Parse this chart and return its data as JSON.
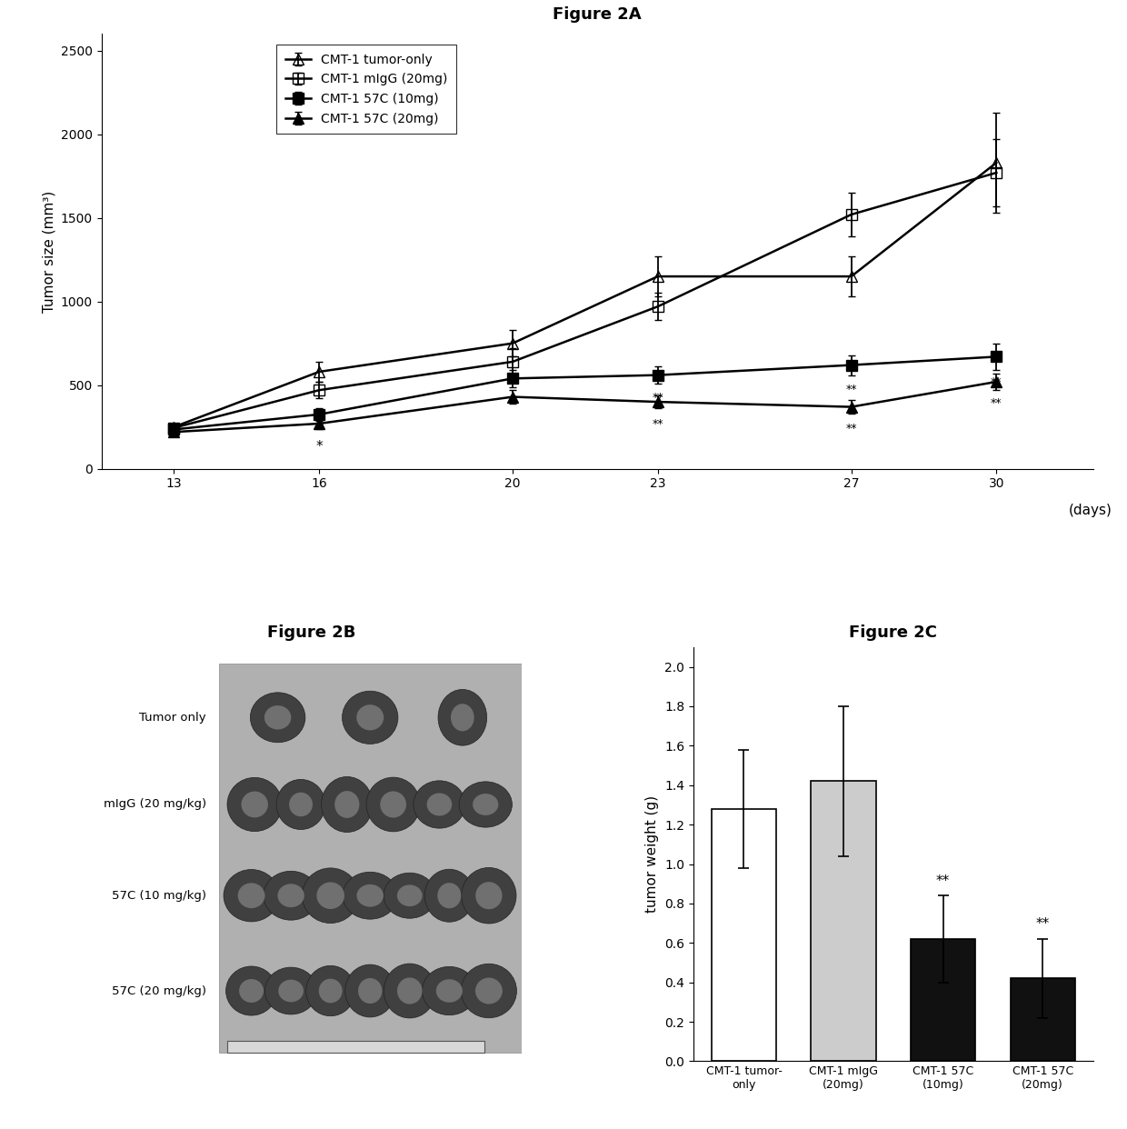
{
  "fig2a_title": "Figure 2A",
  "fig2b_title": "Figure 2B",
  "fig2c_title": "Figure 2C",
  "lineplot": {
    "x": [
      13,
      16,
      20,
      23,
      27,
      30
    ],
    "series": {
      "tumor_only": {
        "y": [
          250,
          580,
          750,
          1150,
          1150,
          1830
        ],
        "yerr": [
          20,
          60,
          80,
          120,
          120,
          300
        ],
        "label": "CMT-1 tumor-only",
        "marker": "^",
        "fillstyle": "none",
        "color": "#000000",
        "linestyle": "-"
      },
      "mIgG_20mg": {
        "y": [
          245,
          470,
          640,
          970,
          1520,
          1770
        ],
        "yerr": [
          20,
          50,
          80,
          80,
          130,
          200
        ],
        "label": "CMT-1 mIgG (20mg)",
        "marker": "s",
        "fillstyle": "none",
        "color": "#000000",
        "linestyle": "-"
      },
      "57C_10mg": {
        "y": [
          235,
          325,
          540,
          560,
          620,
          670
        ],
        "yerr": [
          20,
          40,
          50,
          50,
          60,
          80
        ],
        "label": "CMT-1 57C (10mg)",
        "marker": "s",
        "fillstyle": "full",
        "color": "#000000",
        "linestyle": "-"
      },
      "57C_20mg": {
        "y": [
          220,
          270,
          430,
          400,
          370,
          520
        ],
        "yerr": [
          15,
          30,
          40,
          40,
          40,
          50
        ],
        "label": "CMT-1 57C (20mg)",
        "marker": "^",
        "fillstyle": "full",
        "color": "#000000",
        "linestyle": "-"
      }
    },
    "xlabel": "(days)",
    "ylabel": "Tumor size (mm³)",
    "ylim": [
      0,
      2600
    ],
    "yticks": [
      0,
      500,
      1000,
      1500,
      2000,
      2500
    ],
    "xticks": [
      13,
      16,
      20,
      23,
      27,
      30
    ]
  },
  "barplot": {
    "categories": [
      "CMT-1 tumor-\nonly",
      "CMT-1 mIgG\n(20mg)",
      "CMT-1 57C\n(10mg)",
      "CMT-1 57C\n(20mg)"
    ],
    "values": [
      1.28,
      1.42,
      0.62,
      0.42
    ],
    "yerr": [
      0.3,
      0.38,
      0.22,
      0.2
    ],
    "colors": [
      "#ffffff",
      "#cccccc",
      "#111111",
      "#111111"
    ],
    "edgecolor": "#000000",
    "ylabel": "tumor weight (g)",
    "ylim": [
      0,
      2.1
    ],
    "yticks": [
      0,
      0.2,
      0.4,
      0.6,
      0.8,
      1.0,
      1.2,
      1.4,
      1.6,
      1.8,
      2.0
    ],
    "significance": [
      null,
      null,
      "**",
      "**"
    ]
  },
  "fig2b_labels": [
    "Tumor only",
    "mIgG (20 mg/kg)",
    "57C (10 mg/kg)",
    "57C (20 mg/kg)"
  ],
  "fig2b_n_tumors": [
    3,
    6,
    7,
    7
  ],
  "background_color": "#ffffff",
  "text_color": "#000000",
  "linewidth": 1.8,
  "markersize": 8,
  "fontsize_title": 13,
  "fontsize_label": 11,
  "fontsize_tick": 10,
  "fontsize_legend": 10
}
